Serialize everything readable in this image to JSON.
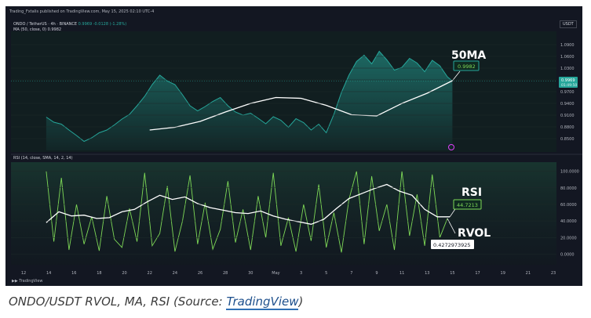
{
  "header": {
    "published": "Trading_Fxtalis published on TradingView.com, May 15, 2025 02:10 UTC-4",
    "symbol": "ONDO / TetherUS · 4h · BINANCE",
    "change": "0.9969 -0.0128 (-1.28%)",
    "ma_legend": "MA (50, close, 0)  0.9982",
    "currency": "USDT"
  },
  "annotations": {
    "ma_label": "50MA",
    "ma_value": "0.9982",
    "rsi_label": "RSI",
    "rsi_value": "44.7213",
    "rvol_label": "RVOL",
    "rvol_value": "0.4272973925"
  },
  "price_badge": {
    "value": "0.9969",
    "time": "01:49:50"
  },
  "rsi_legend": "RSI (14, close, SMA, 14, 2, 14)",
  "footer": {
    "logo": "TradingView"
  },
  "caption": {
    "text": "ONDO/USDT RVOL, MA, RSI (Source: ",
    "link": "TradingView",
    "end": ")"
  },
  "colors": {
    "background": "#131722",
    "price_line": "#26a69a",
    "ma_line": "#ffffff",
    "rvol_line": "#7ed957",
    "accent": "#2f6fb5"
  },
  "chart_data": [
    {
      "type": "area",
      "name": "price",
      "ylim": [
        0.82,
        1.12
      ],
      "y_ticks": [
        0.85,
        0.88,
        0.91,
        0.94,
        0.97,
        1.0,
        1.03,
        1.06,
        1.09
      ],
      "y_tick_labels": [
        "0.8500",
        "0.8800",
        "0.9100",
        "0.9400",
        "0.9700",
        "1.0000",
        "1.0300",
        "1.0600",
        "1.0900"
      ],
      "x_tick_labels": [
        "12",
        "14",
        "16",
        "18",
        "20",
        "22",
        "24",
        "26",
        "28",
        "30",
        "May",
        "3",
        "5",
        "7",
        "9",
        "11",
        "13",
        "15",
        "17",
        "19",
        "21",
        "23"
      ],
      "x_range": [
        0,
        21
      ],
      "x": [
        0.9,
        1.2,
        1.5,
        1.8,
        2.1,
        2.4,
        2.7,
        3.0,
        3.3,
        3.6,
        3.9,
        4.2,
        4.5,
        4.8,
        5.1,
        5.4,
        5.7,
        6.0,
        6.3,
        6.6,
        6.9,
        7.2,
        7.5,
        7.8,
        8.1,
        8.4,
        8.7,
        9.0,
        9.3,
        9.6,
        9.9,
        10.2,
        10.5,
        10.8,
        11.1,
        11.4,
        11.7,
        12.0,
        12.3,
        12.6,
        12.9,
        13.2,
        13.5,
        13.8,
        14.1,
        14.4,
        14.7,
        15.0,
        15.3,
        15.6,
        15.9,
        16.2,
        16.5,
        16.8,
        17.0
      ],
      "y": [
        0.905,
        0.892,
        0.887,
        0.872,
        0.858,
        0.843,
        0.852,
        0.865,
        0.872,
        0.885,
        0.9,
        0.912,
        0.934,
        0.958,
        0.988,
        1.012,
        0.997,
        0.988,
        0.962,
        0.934,
        0.921,
        0.932,
        0.945,
        0.955,
        0.934,
        0.918,
        0.91,
        0.915,
        0.902,
        0.888,
        0.906,
        0.897,
        0.879,
        0.901,
        0.891,
        0.872,
        0.887,
        0.865,
        0.912,
        0.968,
        1.012,
        1.047,
        1.063,
        1.041,
        1.073,
        1.051,
        1.025,
        1.032,
        1.055,
        1.043,
        1.021,
        1.05,
        1.036,
        1.008,
        0.997
      ],
      "ma": {
        "name": "50MA",
        "x": [
          5.0,
          6.0,
          7.0,
          8.0,
          9.0,
          10.0,
          11.0,
          12.0,
          13.0,
          14.0,
          15.0,
          16.0,
          17.0
        ],
        "y": [
          0.872,
          0.879,
          0.894,
          0.918,
          0.94,
          0.955,
          0.953,
          0.935,
          0.911,
          0.908,
          0.94,
          0.966,
          0.998
        ]
      }
    },
    {
      "type": "line",
      "name": "rsi",
      "ylim": [
        -10,
        110
      ],
      "y_ticks": [
        0,
        20,
        40,
        60,
        80,
        100
      ],
      "y_tick_labels": [
        "0.0000",
        "20.0000",
        "40.0000",
        "60.0000",
        "80.0000",
        "100.0000"
      ],
      "x": [
        0.9,
        1.4,
        1.9,
        2.4,
        2.9,
        3.4,
        3.9,
        4.4,
        4.9,
        5.4,
        5.9,
        6.4,
        6.9,
        7.4,
        7.9,
        8.4,
        8.9,
        9.4,
        9.9,
        10.4,
        10.9,
        11.4,
        11.9,
        12.4,
        12.9,
        13.4,
        13.9,
        14.4,
        14.9,
        15.4,
        15.9,
        16.4,
        16.9
      ],
      "y": [
        38,
        51,
        46,
        47,
        43,
        44,
        51,
        54,
        63,
        71,
        66,
        69,
        61,
        56,
        53,
        50,
        49,
        52,
        46,
        42,
        39,
        36,
        42,
        55,
        67,
        73,
        79,
        84,
        76,
        71,
        54,
        45,
        45
      ],
      "rvol": {
        "x": [
          0.9,
          1.2,
          1.5,
          1.8,
          2.1,
          2.4,
          2.7,
          3.0,
          3.3,
          3.6,
          3.9,
          4.2,
          4.5,
          4.8,
          5.1,
          5.4,
          5.7,
          6.0,
          6.3,
          6.6,
          6.9,
          7.2,
          7.5,
          7.8,
          8.1,
          8.4,
          8.7,
          9.0,
          9.3,
          9.6,
          9.9,
          10.2,
          10.5,
          10.8,
          11.1,
          11.4,
          11.7,
          12.0,
          12.3,
          12.6,
          12.9,
          13.2,
          13.5,
          13.8,
          14.1,
          14.4,
          14.7,
          15.0,
          15.3,
          15.6,
          15.9,
          16.2,
          16.5,
          16.8
        ],
        "y": [
          100,
          15,
          92,
          5,
          60,
          12,
          45,
          4,
          70,
          18,
          8,
          55,
          15,
          98,
          10,
          25,
          82,
          3,
          40,
          95,
          12,
          62,
          6,
          30,
          88,
          14,
          54,
          5,
          70,
          20,
          98,
          10,
          44,
          3,
          60,
          16,
          84,
          8,
          50,
          2,
          66,
          100,
          12,
          94,
          28,
          60,
          5,
          100,
          22,
          72,
          10,
          96,
          20,
          43
        ]
      }
    }
  ]
}
